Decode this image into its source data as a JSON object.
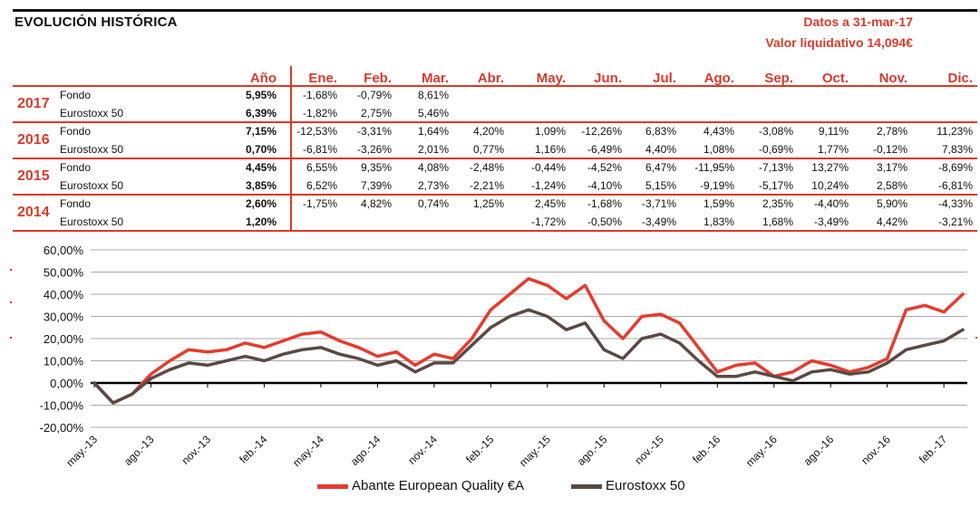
{
  "header": {
    "title": "EVOLUCIÓN HISTÓRICA",
    "date_label": "Datos a 31-mar-17",
    "nav_label": "Valor liquidativo 14,094€"
  },
  "table": {
    "columns": [
      "Año",
      "Ene.",
      "Feb.",
      "Mar.",
      "Abr.",
      "May.",
      "Jun.",
      "Jul.",
      "Ago.",
      "Sep.",
      "Oct.",
      "Nov.",
      "Dic."
    ],
    "years": [
      {
        "year": "2017",
        "rows": [
          {
            "label": "Fondo",
            "values": [
              "5,95%",
              "-1,68%",
              "-0,79%",
              "8,61%",
              "",
              "",
              "",
              "",
              "",
              "",
              "",
              "",
              ""
            ]
          },
          {
            "label": "Eurostoxx 50",
            "values": [
              "6,39%",
              "-1,82%",
              "2,75%",
              "5,46%",
              "",
              "",
              "",
              "",
              "",
              "",
              "",
              "",
              ""
            ]
          }
        ]
      },
      {
        "year": "2016",
        "rows": [
          {
            "label": "Fondo",
            "values": [
              "7,15%",
              "-12,53%",
              "-3,31%",
              "1,64%",
              "4,20%",
              "1,09%",
              "-12,26%",
              "6,83%",
              "4,43%",
              "-3,08%",
              "9,11%",
              "2,78%",
              "11,23%"
            ]
          },
          {
            "label": "Eurostoxx 50",
            "values": [
              "0,70%",
              "-6,81%",
              "-3,26%",
              "2,01%",
              "0,77%",
              "1,16%",
              "-6,49%",
              "4,40%",
              "1,08%",
              "-0,69%",
              "1,77%",
              "-0,12%",
              "7,83%"
            ]
          }
        ]
      },
      {
        "year": "2015",
        "rows": [
          {
            "label": "Fondo",
            "values": [
              "4,45%",
              "6,55%",
              "9,35%",
              "4,08%",
              "-2,48%",
              "-0,44%",
              "-4,52%",
              "6,47%",
              "-11,95%",
              "-7,13%",
              "13,27%",
              "3,17%",
              "-8,69%"
            ]
          },
          {
            "label": "Eurostoxx 50",
            "values": [
              "3,85%",
              "6,52%",
              "7,39%",
              "2,73%",
              "-2,21%",
              "-1,24%",
              "-4,10%",
              "5,15%",
              "-9,19%",
              "-5,17%",
              "10,24%",
              "2,58%",
              "-6,81%"
            ]
          }
        ]
      },
      {
        "year": "2014",
        "rows": [
          {
            "label": "Fondo",
            "values": [
              "2,60%",
              "-1,75%",
              "4,82%",
              "0,74%",
              "1,25%",
              "2,45%",
              "-1,68%",
              "-3,71%",
              "1,59%",
              "2,35%",
              "-4,40%",
              "5,90%",
              "-4,33%"
            ]
          },
          {
            "label": "Eurostoxx 50",
            "values": [
              "1,20%",
              "",
              "",
              "",
              "",
              "-1,72%",
              "-0,50%",
              "-3,49%",
              "1,83%",
              "1,68%",
              "-3,49%",
              "4,42%",
              "-3,21%"
            ]
          }
        ]
      }
    ]
  },
  "chart_data": {
    "type": "line",
    "y_tick_labels": [
      "60,00%",
      "50,00%",
      "40,00%",
      "30,00%",
      "20,00%",
      "10,00%",
      "0,00%",
      "-10,00%",
      "-20,00%"
    ],
    "y_ticks": [
      60,
      50,
      40,
      30,
      20,
      10,
      0,
      -10,
      -20
    ],
    "ylim": [
      -20,
      60
    ],
    "x_tick_labels": [
      "may.-13",
      "ago.-13",
      "nov.-13",
      "feb.-14",
      "may.-14",
      "ago.-14",
      "nov.-14",
      "feb.-15",
      "may.-15",
      "ago.-15",
      "nov.-15",
      "feb.-16",
      "may.-16",
      "ago.-16",
      "nov.-16",
      "feb.-17"
    ],
    "x_months": [
      "2013-05",
      "2013-06",
      "2013-07",
      "2013-08",
      "2013-09",
      "2013-10",
      "2013-11",
      "2013-12",
      "2014-01",
      "2014-02",
      "2014-03",
      "2014-04",
      "2014-05",
      "2014-06",
      "2014-07",
      "2014-08",
      "2014-09",
      "2014-10",
      "2014-11",
      "2014-12",
      "2015-01",
      "2015-02",
      "2015-03",
      "2015-04",
      "2015-05",
      "2015-06",
      "2015-07",
      "2015-08",
      "2015-09",
      "2015-10",
      "2015-11",
      "2015-12",
      "2016-01",
      "2016-02",
      "2016-03",
      "2016-04",
      "2016-05",
      "2016-06",
      "2016-07",
      "2016-08",
      "2016-09",
      "2016-10",
      "2016-11",
      "2016-12",
      "2017-01",
      "2017-02",
      "2017-03"
    ],
    "grid": true,
    "legend_position": "bottom",
    "series": [
      {
        "name": "Abante European Quality €A",
        "color": "#e53b2e",
        "values": [
          0,
          -9,
          -5,
          4,
          10,
          15,
          14,
          15,
          18,
          16,
          19,
          22,
          23,
          19,
          16,
          12,
          14,
          8,
          13,
          11,
          20,
          33,
          40,
          47,
          44,
          38,
          44,
          28,
          20,
          30,
          31,
          27,
          16,
          5,
          8,
          9,
          3,
          5,
          10,
          8,
          5,
          7,
          11,
          33,
          35,
          32,
          40
        ]
      },
      {
        "name": "Eurostoxx 50",
        "color": "#5a4a44",
        "values": [
          0,
          -9,
          -5,
          2,
          6,
          9,
          8,
          10,
          12,
          10,
          13,
          15,
          16,
          13,
          11,
          8,
          10,
          5,
          9,
          9,
          17,
          25,
          30,
          33,
          30,
          24,
          27,
          15,
          11,
          20,
          22,
          18,
          10,
          3,
          3,
          5,
          3,
          1,
          5,
          6,
          4,
          5,
          9,
          15,
          17,
          19,
          24
        ]
      }
    ]
  }
}
